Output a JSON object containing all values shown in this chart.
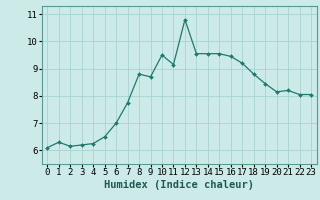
{
  "x": [
    0,
    1,
    2,
    3,
    4,
    5,
    6,
    7,
    8,
    9,
    10,
    11,
    12,
    13,
    14,
    15,
    16,
    17,
    18,
    19,
    20,
    21,
    22,
    23
  ],
  "y": [
    6.1,
    6.3,
    6.15,
    6.2,
    6.25,
    6.5,
    7.0,
    7.75,
    8.8,
    8.7,
    9.5,
    9.15,
    10.8,
    9.55,
    9.55,
    9.55,
    9.45,
    9.2,
    8.8,
    8.45,
    8.15,
    8.2,
    8.05,
    8.05
  ],
  "line_color": "#1e7a6e",
  "marker_color": "#1e7a6e",
  "bg_color": "#cceae8",
  "grid_color": "#a8d4d0",
  "xlabel": "Humidex (Indice chaleur)",
  "xlim": [
    -0.5,
    23.5
  ],
  "ylim": [
    5.5,
    11.3
  ],
  "yticks": [
    6,
    7,
    8,
    9,
    10,
    11
  ],
  "xticks": [
    0,
    1,
    2,
    3,
    4,
    5,
    6,
    7,
    8,
    9,
    10,
    11,
    12,
    13,
    14,
    15,
    16,
    17,
    18,
    19,
    20,
    21,
    22,
    23
  ],
  "tick_font_size": 6.5,
  "label_font_size": 7.5
}
